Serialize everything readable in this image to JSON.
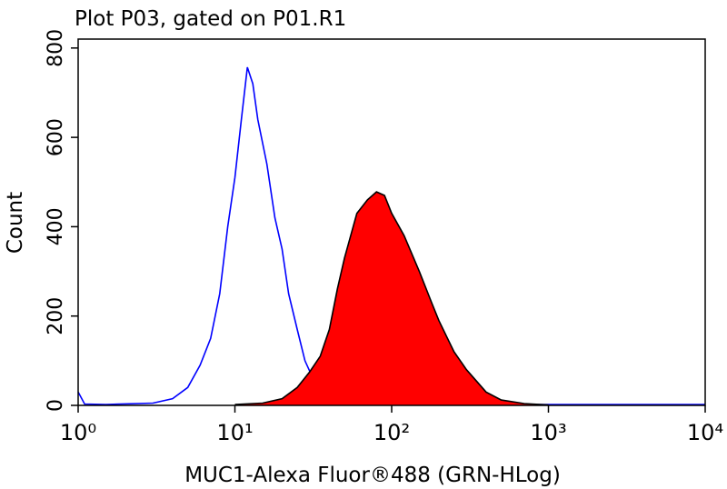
{
  "chart_data": {
    "type": "line",
    "title": "Plot P03, gated on P01.R1",
    "x_label": "MUC1-Alexa Fluor®488 (GRN-HLog)",
    "y_label": "Count",
    "log_x": true,
    "xlim": [
      1,
      10000
    ],
    "xticks": [
      {
        "value": 1,
        "label": "10⁰"
      },
      {
        "value": 10,
        "label": "10¹"
      },
      {
        "value": 100,
        "label": "10²"
      },
      {
        "value": 1000,
        "label": "10³"
      },
      {
        "value": 10000,
        "label": "10⁴"
      }
    ],
    "ylim": [
      0,
      820
    ],
    "yticks": [
      0,
      200,
      400,
      600,
      800
    ],
    "series": [
      {
        "color": "#0000ff",
        "x": [
          1,
          1.1,
          1.5,
          3,
          4,
          5,
          6,
          7,
          8,
          9,
          10,
          11,
          12,
          13,
          14,
          16,
          18,
          20,
          22,
          25,
          28,
          32,
          40,
          50,
          100,
          1000,
          10000
        ],
        "values": [
          30,
          3,
          2,
          5,
          15,
          40,
          90,
          150,
          250,
          400,
          510,
          640,
          757,
          720,
          640,
          540,
          420,
          350,
          250,
          170,
          100,
          55,
          15,
          5,
          1,
          2,
          2
        ]
      },
      {
        "color": "#000000",
        "fill": "#ff0000",
        "x": [
          10,
          15,
          20,
          25,
          30,
          35,
          40,
          45,
          50,
          60,
          70,
          80,
          90,
          100,
          120,
          150,
          180,
          200,
          250,
          300,
          400,
          500,
          700,
          1000
        ],
        "values": [
          2,
          5,
          15,
          40,
          75,
          110,
          170,
          260,
          330,
          430,
          460,
          478,
          470,
          430,
          380,
          300,
          230,
          190,
          120,
          80,
          30,
          12,
          4,
          1
        ]
      }
    ]
  }
}
